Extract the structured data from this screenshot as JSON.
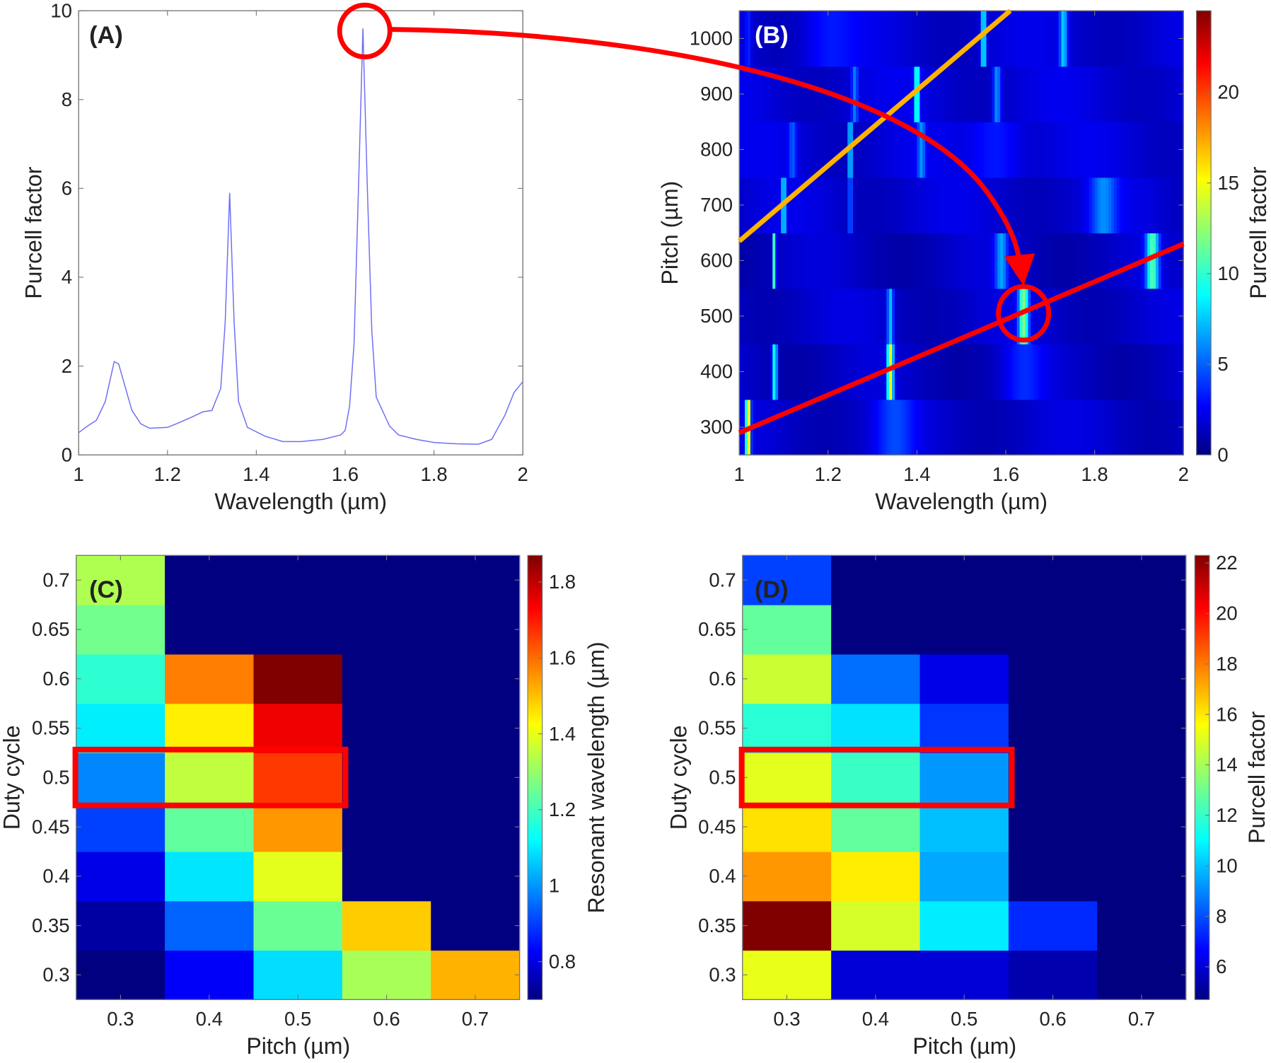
{
  "colors": {
    "spectrum_line": "#6f6ff5",
    "highlight": "#ff0000",
    "guide_line": "#ffb300",
    "axes": "#777777"
  },
  "chart_data": [
    {
      "panel": "(A)",
      "type": "line",
      "xlabel": "Wavelength (µm)",
      "ylabel": "Purcell factor",
      "xlim": [
        1,
        2
      ],
      "ylim": [
        0,
        10
      ],
      "xticks": [
        "1",
        "1.2",
        "1.4",
        "1.6",
        "1.8",
        "2"
      ],
      "yticks": [
        "0",
        "2",
        "4",
        "6",
        "8",
        "10"
      ],
      "x": [
        1.0,
        1.02,
        1.04,
        1.06,
        1.08,
        1.09,
        1.1,
        1.12,
        1.14,
        1.16,
        1.2,
        1.22,
        1.25,
        1.28,
        1.3,
        1.32,
        1.33,
        1.34,
        1.35,
        1.36,
        1.38,
        1.42,
        1.46,
        1.5,
        1.55,
        1.59,
        1.6,
        1.61,
        1.62,
        1.63,
        1.64,
        1.65,
        1.66,
        1.67,
        1.7,
        1.72,
        1.76,
        1.8,
        1.85,
        1.9,
        1.93,
        1.96,
        1.98,
        2.0
      ],
      "y": [
        0.5,
        0.65,
        0.78,
        1.2,
        2.1,
        2.05,
        1.7,
        1.0,
        0.7,
        0.6,
        0.62,
        0.7,
        0.83,
        0.97,
        1.0,
        1.5,
        3.0,
        5.9,
        3.0,
        1.2,
        0.62,
        0.42,
        0.3,
        0.3,
        0.35,
        0.45,
        0.55,
        1.1,
        2.5,
        6.0,
        9.6,
        6.0,
        2.8,
        1.3,
        0.65,
        0.45,
        0.35,
        0.28,
        0.25,
        0.24,
        0.35,
        0.9,
        1.4,
        1.65
      ],
      "grid": false
    },
    {
      "panel": "(B)",
      "type": "heatmap",
      "xlabel": "Wavelength (µm)",
      "ylabel": "Pitch (µm)",
      "colorbar_label": "Purcell factor",
      "xlim": [
        1,
        2
      ],
      "ylim": [
        250,
        1050
      ],
      "xticks": [
        "1",
        "1.2",
        "1.4",
        "1.6",
        "1.8",
        "2"
      ],
      "yticks": [
        "300",
        "400",
        "500",
        "600",
        "700",
        "800",
        "900",
        "1000"
      ],
      "cbar_range": [
        0,
        24.5
      ],
      "cbar_ticks": [
        "0",
        "5",
        "10",
        "15",
        "20"
      ],
      "rows": [
        {
          "pitch": 300,
          "base": 1.8,
          "peaks": [
            [
              1.02,
              14,
              0.004
            ],
            [
              1.35,
              2.5,
              0.03
            ]
          ]
        },
        {
          "pitch": 400,
          "base": 1.6,
          "peaks": [
            [
              1.08,
              9,
              0.004
            ],
            [
              1.34,
              13,
              0.005
            ],
            [
              1.64,
              2,
              0.03
            ]
          ]
        },
        {
          "pitch": 500,
          "base": 1.8,
          "peaks": [
            [
              1.34,
              6,
              0.005
            ],
            [
              1.64,
              10,
              0.008
            ]
          ]
        },
        {
          "pitch": 600,
          "base": 1.6,
          "peaks": [
            [
              1.08,
              14,
              0.002
            ],
            [
              1.59,
              5,
              0.01
            ],
            [
              1.93,
              9,
              0.01
            ]
          ]
        },
        {
          "pitch": 700,
          "base": 2.0,
          "peaks": [
            [
              1.1,
              8,
              0.003
            ],
            [
              1.25,
              5,
              0.003
            ],
            [
              1.82,
              4,
              0.02
            ]
          ]
        },
        {
          "pitch": 800,
          "base": 2.1,
          "peaks": [
            [
              1.12,
              3,
              0.006
            ],
            [
              1.25,
              9,
              0.003
            ],
            [
              1.41,
              4,
              0.006
            ],
            [
              1.58,
              2,
              0.04
            ]
          ]
        },
        {
          "pitch": 900,
          "base": 2.1,
          "peaks": [
            [
              1.26,
              4,
              0.005
            ],
            [
              1.4,
              9,
              0.004
            ],
            [
              1.58,
              5,
              0.006
            ]
          ]
        },
        {
          "pitch": 1000,
          "base": 2.0,
          "peaks": [
            [
              1.02,
              2,
              0.005
            ],
            [
              1.2,
              1.5,
              0.04
            ],
            [
              1.55,
              8,
              0.004
            ],
            [
              1.73,
              6,
              0.006
            ]
          ]
        }
      ],
      "annotations": {
        "red_line": [
          [
            1.0,
            290
          ],
          [
            2.0,
            630
          ]
        ],
        "yellow_line": [
          [
            1.0,
            635
          ],
          [
            1.61,
            1050
          ]
        ],
        "circle_center": [
          1.64,
          505
        ]
      }
    },
    {
      "panel": "(C)",
      "type": "heatmap",
      "xlabel": "Pitch (µm)",
      "ylabel": "Duty cycle",
      "colorbar_label": "Resonant wavelength (µm)",
      "x": [
        "0.3",
        "0.4",
        "0.5",
        "0.6",
        "0.7"
      ],
      "y": [
        "0.3",
        "0.35",
        "0.4",
        "0.45",
        "0.5",
        "0.55",
        "0.6",
        "0.65",
        "0.7"
      ],
      "cbar_range": [
        0.7,
        1.87
      ],
      "cbar_ticks": [
        "0.8",
        "1",
        "1.2",
        "1.4",
        "1.6",
        "1.8"
      ],
      "values": [
        [
          0.7,
          0.84,
          1.1,
          1.33,
          1.52
        ],
        [
          0.74,
          0.96,
          1.26,
          1.49,
          null
        ],
        [
          0.82,
          1.11,
          1.4,
          null,
          null
        ],
        [
          0.92,
          1.25,
          1.55,
          null,
          null
        ],
        [
          1.0,
          1.36,
          1.66,
          null,
          null
        ],
        [
          1.12,
          1.45,
          1.74,
          null,
          null
        ],
        [
          1.19,
          1.58,
          1.87,
          null,
          null
        ],
        [
          1.27,
          null,
          null,
          null,
          null
        ],
        [
          1.34,
          null,
          null,
          null,
          null
        ]
      ],
      "highlight_row": "0.5"
    },
    {
      "panel": "(D)",
      "type": "heatmap",
      "xlabel": "Pitch (µm)",
      "ylabel": "Duty cycle",
      "colorbar_label": "Purcell factor",
      "x": [
        "0.3",
        "0.4",
        "0.5",
        "0.6",
        "0.7"
      ],
      "y": [
        "0.3",
        "0.35",
        "0.4",
        "0.45",
        "0.5",
        "0.55",
        "0.6",
        "0.65",
        "0.7"
      ],
      "cbar_range": [
        4.7,
        22.3
      ],
      "cbar_ticks": [
        "6",
        "8",
        "10",
        "12",
        "14",
        "16",
        "18",
        "20",
        "22"
      ],
      "values": [
        [
          15.3,
          6.2,
          6.2,
          5.5,
          null
        ],
        [
          22.3,
          15.0,
          11.0,
          7.6,
          null
        ],
        [
          17.5,
          16.0,
          9.8,
          null,
          null
        ],
        [
          16.2,
          13.0,
          10.2,
          null,
          null
        ],
        [
          15.2,
          12.3,
          9.5,
          null,
          null
        ],
        [
          12.0,
          10.8,
          7.8,
          null,
          null
        ],
        [
          14.8,
          8.8,
          6.5,
          null,
          null
        ],
        [
          13.0,
          null,
          null,
          null,
          null
        ],
        [
          8.0,
          null,
          null,
          null,
          null
        ]
      ],
      "highlight_row": "0.5"
    }
  ]
}
